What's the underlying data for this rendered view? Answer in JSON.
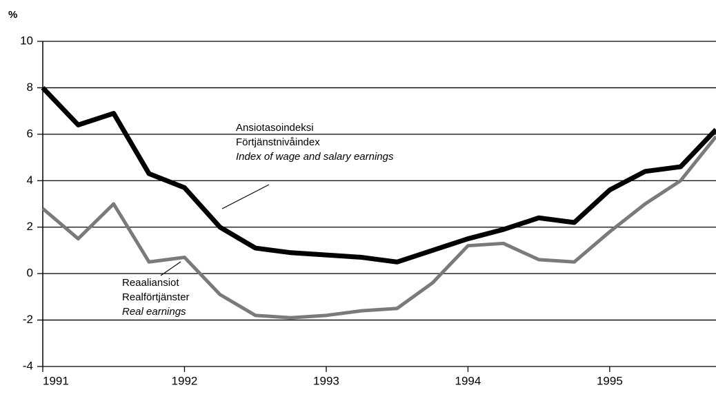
{
  "chart_data": {
    "type": "line",
    "y_label": "%",
    "x": [
      1991,
      1991.25,
      1991.5,
      1991.75,
      1992,
      1992.25,
      1992.5,
      1992.75,
      1993,
      1993.25,
      1993.5,
      1993.75,
      1994,
      1994.25,
      1994.5,
      1994.75,
      1995,
      1995.25,
      1995.5,
      1995.75
    ],
    "xlim": [
      1991,
      1995.75
    ],
    "xticks": [
      1991,
      1992,
      1993,
      1994,
      1995
    ],
    "ylim": [
      -4,
      10
    ],
    "yticks": [
      -4,
      -2,
      0,
      2,
      4,
      6,
      8,
      10
    ],
    "grid": true,
    "series": [
      {
        "name": "Index of wage and salary earnings",
        "label_lines": [
          "Ansiotasoindeksi",
          "Förtjänstnivåindex"
        ],
        "color": "#000000",
        "width": 7,
        "values": [
          8.0,
          6.4,
          6.9,
          4.3,
          3.7,
          2.0,
          1.1,
          0.9,
          0.8,
          0.7,
          0.5,
          1.0,
          1.5,
          1.9,
          2.4,
          2.2,
          3.6,
          4.4,
          4.6,
          6.2
        ]
      },
      {
        "name": "Real earnings",
        "label_lines": [
          "Reaaliansiot",
          "Realförtjänster"
        ],
        "color": "#7a7a7a",
        "width": 5,
        "values": [
          2.8,
          1.5,
          3.0,
          0.5,
          0.7,
          -0.9,
          -1.8,
          -1.9,
          -1.8,
          -1.6,
          -1.5,
          -0.4,
          1.2,
          1.3,
          0.6,
          0.5,
          1.8,
          3.0,
          4.0,
          5.9
        ]
      }
    ]
  }
}
